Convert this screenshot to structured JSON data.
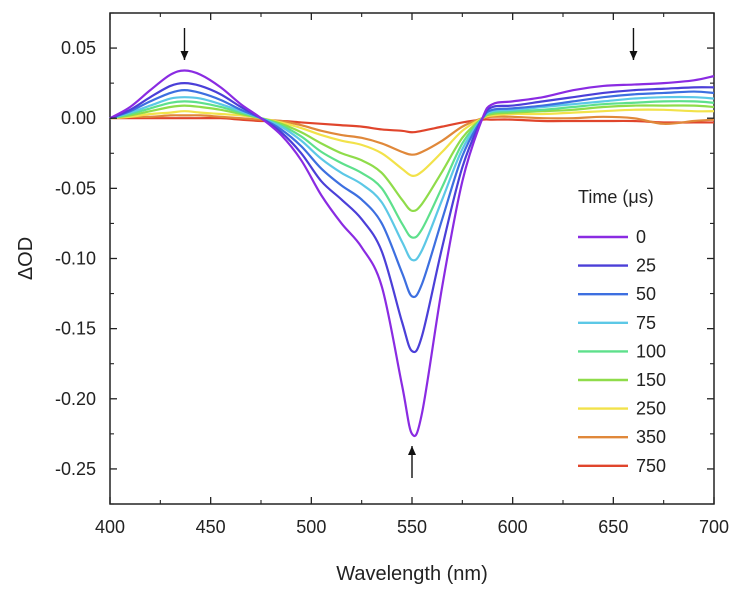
{
  "chart_data": {
    "type": "line",
    "title": "",
    "xlabel": "Wavelength (nm)",
    "ylabel": "ΔOD",
    "xlim": [
      400,
      700
    ],
    "ylim": [
      -0.275,
      0.075
    ],
    "xticks": [
      400,
      450,
      500,
      550,
      600,
      650,
      700
    ],
    "xtick_labels": [
      "400",
      "450",
      "500",
      "550",
      "600",
      "650",
      "700"
    ],
    "yticks": [
      0.05,
      0.0,
      -0.05,
      -0.1,
      -0.15,
      -0.2,
      -0.25
    ],
    "ytick_labels": [
      "0.05",
      "0.00",
      "-0.05",
      "-0.10",
      "-0.15",
      "-0.20",
      "-0.25"
    ],
    "grid": false,
    "legend": {
      "title": "Time (μs)",
      "position": "right"
    },
    "annotations": [
      {
        "type": "arrow",
        "x": 437,
        "direction": "down"
      },
      {
        "type": "arrow",
        "x": 550,
        "direction": "up"
      },
      {
        "type": "arrow",
        "x": 660,
        "direction": "down"
      }
    ],
    "x": [
      400,
      410,
      420,
      430,
      437,
      445,
      455,
      465,
      475,
      485,
      495,
      505,
      515,
      525,
      535,
      545,
      550,
      555,
      565,
      575,
      585,
      590,
      600,
      615,
      630,
      645,
      660,
      675,
      690,
      700
    ],
    "series": [
      {
        "name": "0",
        "color": "#8a2be2",
        "values": [
          0.0,
          0.008,
          0.02,
          0.031,
          0.034,
          0.031,
          0.022,
          0.01,
          0.0,
          -0.012,
          -0.03,
          -0.055,
          -0.075,
          -0.092,
          -0.12,
          -0.19,
          -0.225,
          -0.21,
          -0.12,
          -0.045,
          0.0,
          0.01,
          0.012,
          0.015,
          0.02,
          0.023,
          0.024,
          0.025,
          0.027,
          0.03
        ]
      },
      {
        "name": "25",
        "color": "#4b3fd8",
        "values": [
          0.0,
          0.006,
          0.015,
          0.023,
          0.025,
          0.023,
          0.017,
          0.008,
          0.0,
          -0.01,
          -0.025,
          -0.045,
          -0.058,
          -0.072,
          -0.095,
          -0.145,
          -0.166,
          -0.155,
          -0.092,
          -0.035,
          0.0,
          0.008,
          0.009,
          0.012,
          0.015,
          0.018,
          0.02,
          0.021,
          0.022,
          0.022
        ]
      },
      {
        "name": "50",
        "color": "#3d6fe0",
        "values": [
          0.0,
          0.005,
          0.012,
          0.018,
          0.02,
          0.018,
          0.013,
          0.006,
          0.0,
          -0.008,
          -0.02,
          -0.036,
          -0.048,
          -0.058,
          -0.075,
          -0.11,
          -0.127,
          -0.118,
          -0.072,
          -0.027,
          0.0,
          0.006,
          0.007,
          0.009,
          0.012,
          0.015,
          0.017,
          0.018,
          0.019,
          0.018
        ]
      },
      {
        "name": "75",
        "color": "#5cc8e6",
        "values": [
          0.0,
          0.004,
          0.009,
          0.014,
          0.015,
          0.014,
          0.01,
          0.005,
          0.0,
          -0.006,
          -0.016,
          -0.029,
          -0.039,
          -0.047,
          -0.06,
          -0.088,
          -0.101,
          -0.094,
          -0.058,
          -0.022,
          0.0,
          0.005,
          0.006,
          0.008,
          0.01,
          0.012,
          0.014,
          0.015,
          0.015,
          0.014
        ]
      },
      {
        "name": "100",
        "color": "#5ee08c",
        "values": [
          0.0,
          0.003,
          0.007,
          0.011,
          0.012,
          0.011,
          0.008,
          0.004,
          0.0,
          -0.005,
          -0.013,
          -0.024,
          -0.032,
          -0.039,
          -0.05,
          -0.075,
          -0.085,
          -0.079,
          -0.049,
          -0.018,
          0.0,
          0.004,
          0.005,
          0.006,
          0.008,
          0.01,
          0.011,
          0.012,
          0.012,
          0.011
        ]
      },
      {
        "name": "150",
        "color": "#8fdc4a",
        "values": [
          0.0,
          0.002,
          0.005,
          0.008,
          0.009,
          0.008,
          0.006,
          0.003,
          0.0,
          -0.004,
          -0.01,
          -0.018,
          -0.025,
          -0.03,
          -0.039,
          -0.058,
          -0.066,
          -0.061,
          -0.038,
          -0.014,
          0.0,
          0.003,
          0.004,
          0.005,
          0.006,
          0.008,
          0.009,
          0.009,
          0.009,
          0.008
        ]
      },
      {
        "name": "250",
        "color": "#f2e24a",
        "values": [
          0.0,
          0.001,
          0.003,
          0.004,
          0.005,
          0.004,
          0.003,
          0.002,
          0.0,
          -0.003,
          -0.007,
          -0.012,
          -0.016,
          -0.019,
          -0.025,
          -0.036,
          -0.041,
          -0.038,
          -0.024,
          -0.009,
          0.0,
          0.002,
          0.003,
          0.003,
          0.004,
          0.005,
          0.006,
          0.006,
          0.005,
          0.005
        ]
      },
      {
        "name": "350",
        "color": "#e0883a",
        "values": [
          0.0,
          0.001,
          0.001,
          0.002,
          0.002,
          0.002,
          0.001,
          0.0,
          -0.001,
          -0.002,
          -0.005,
          -0.009,
          -0.012,
          -0.014,
          -0.018,
          -0.024,
          -0.026,
          -0.024,
          -0.016,
          -0.006,
          0.0,
          0.001,
          0.001,
          0.0,
          0.0,
          0.001,
          0.0,
          -0.004,
          -0.002,
          -0.001
        ]
      },
      {
        "name": "750",
        "color": "#e0452c",
        "values": [
          0.0,
          0.0,
          0.0,
          0.0,
          0.0,
          0.0,
          0.0,
          -0.001,
          -0.002,
          -0.002,
          -0.003,
          -0.004,
          -0.005,
          -0.006,
          -0.008,
          -0.009,
          -0.01,
          -0.009,
          -0.006,
          -0.003,
          -0.001,
          -0.001,
          -0.001,
          -0.002,
          -0.002,
          -0.002,
          -0.002,
          -0.003,
          -0.003,
          -0.003
        ]
      }
    ]
  }
}
